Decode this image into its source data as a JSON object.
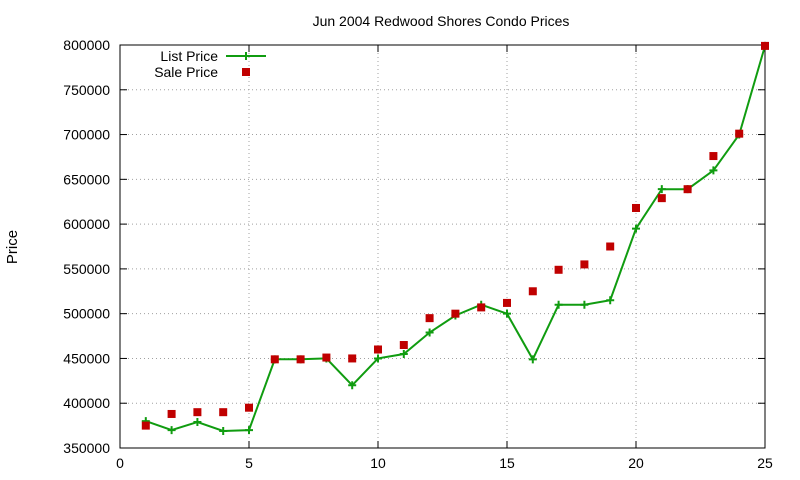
{
  "chart_data": {
    "type": "line",
    "title": "Jun 2004 Redwood Shores Condo Prices",
    "xlabel": "",
    "ylabel": "Price",
    "xlim": [
      0,
      25
    ],
    "ylim": [
      350000,
      800000
    ],
    "x_ticks": [
      0,
      5,
      10,
      15,
      20,
      25
    ],
    "y_ticks": [
      350000,
      400000,
      450000,
      500000,
      550000,
      600000,
      650000,
      700000,
      750000,
      800000
    ],
    "grid": true,
    "legend_position": "top-left",
    "series": [
      {
        "name": "List Price",
        "style": "line-with-plus-markers",
        "color": "#109c10",
        "points": [
          [
            1,
            380000
          ],
          [
            2,
            370000
          ],
          [
            3,
            379000
          ],
          [
            4,
            369000
          ],
          [
            5,
            370000
          ],
          [
            6,
            449000
          ],
          [
            7,
            449000
          ],
          [
            8,
            450000
          ],
          [
            9,
            420000
          ],
          [
            10,
            450000
          ],
          [
            11,
            455000
          ],
          [
            12,
            479000
          ],
          [
            13,
            498000
          ],
          [
            14,
            510000
          ],
          [
            15,
            500000
          ],
          [
            16,
            449000
          ],
          [
            17,
            510000
          ],
          [
            18,
            510000
          ],
          [
            19,
            515000
          ],
          [
            20,
            595000
          ],
          [
            21,
            639000
          ],
          [
            22,
            639000
          ],
          [
            23,
            660000
          ],
          [
            24,
            700000
          ],
          [
            25,
            799000
          ]
        ]
      },
      {
        "name": "Sale Price",
        "style": "square-markers",
        "color": "#c00000",
        "points": [
          [
            1,
            375000
          ],
          [
            2,
            388000
          ],
          [
            3,
            390000
          ],
          [
            4,
            390000
          ],
          [
            5,
            395000
          ],
          [
            6,
            449000
          ],
          [
            7,
            449000
          ],
          [
            8,
            451000
          ],
          [
            9,
            450000
          ],
          [
            10,
            460000
          ],
          [
            11,
            465000
          ],
          [
            12,
            495000
          ],
          [
            13,
            500000
          ],
          [
            14,
            507000
          ],
          [
            15,
            512000
          ],
          [
            16,
            525000
          ],
          [
            17,
            549000
          ],
          [
            18,
            555000
          ],
          [
            19,
            575000
          ],
          [
            20,
            618000
          ],
          [
            21,
            629000
          ],
          [
            22,
            639000
          ],
          [
            23,
            676000
          ],
          [
            24,
            701000
          ],
          [
            25,
            799000
          ]
        ]
      }
    ]
  }
}
